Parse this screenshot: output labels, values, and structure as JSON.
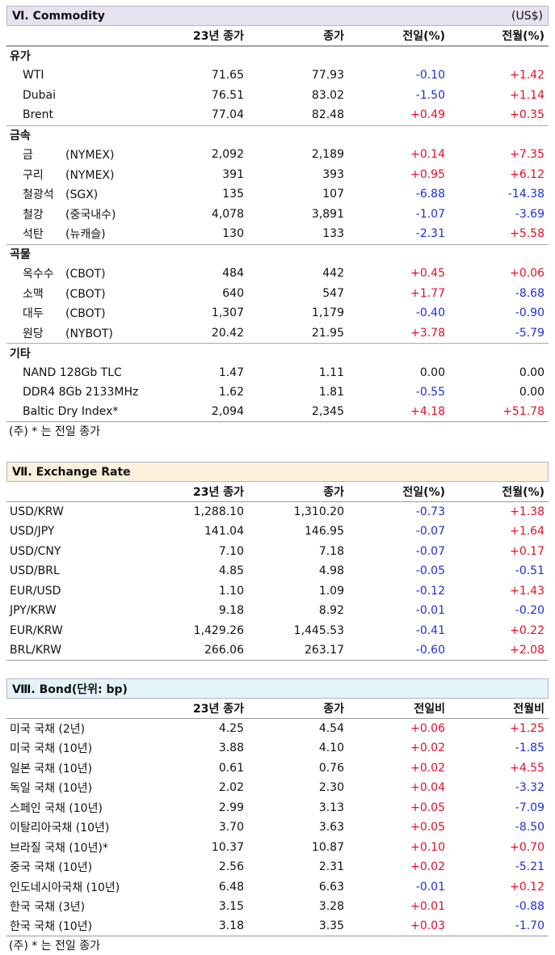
{
  "commodity": {
    "title": "Ⅵ. Commodity",
    "unit": "(US$)",
    "headers": [
      "",
      "23년 종가",
      "종가",
      "전일(%)",
      "전월(%)"
    ],
    "groups": [
      {
        "label": "유가",
        "rows": [
          {
            "name": "WTI",
            "sub": "",
            "y23": "71.65",
            "close": "77.93",
            "d": "-0.10",
            "m": "+1.42"
          },
          {
            "name": "Dubai",
            "sub": "",
            "y23": "76.51",
            "close": "83.02",
            "d": "-1.50",
            "m": "+1.14"
          },
          {
            "name": "Brent",
            "sub": "",
            "y23": "77.04",
            "close": "82.48",
            "d": "+0.49",
            "m": "+0.35"
          }
        ]
      },
      {
        "label": "금속",
        "rows": [
          {
            "name": "금",
            "sub": "(NYMEX)",
            "y23": "2,092",
            "close": "2,189",
            "d": "+0.14",
            "m": "+7.35"
          },
          {
            "name": "구리",
            "sub": "(NYMEX)",
            "y23": "391",
            "close": "393",
            "d": "+0.95",
            "m": "+6.12"
          },
          {
            "name": "철광석",
            "sub": "(SGX)",
            "y23": "135",
            "close": "107",
            "d": "-6.88",
            "m": "-14.38"
          },
          {
            "name": "철강",
            "sub": "(중국내수)",
            "y23": "4,078",
            "close": "3,891",
            "d": "-1.07",
            "m": "-3.69"
          },
          {
            "name": "석탄",
            "sub": "(뉴캐슬)",
            "y23": "130",
            "close": "133",
            "d": "-2.31",
            "m": "+5.58"
          }
        ]
      },
      {
        "label": "곡물",
        "rows": [
          {
            "name": "옥수수",
            "sub": "(CBOT)",
            "y23": "484",
            "close": "442",
            "d": "+0.45",
            "m": "+0.06"
          },
          {
            "name": "소맥",
            "sub": "(CBOT)",
            "y23": "640",
            "close": "547",
            "d": "+1.77",
            "m": "-8.68"
          },
          {
            "name": "대두",
            "sub": "(CBOT)",
            "y23": "1,307",
            "close": "1,179",
            "d": "-0.40",
            "m": "-0.90"
          },
          {
            "name": "원당",
            "sub": "(NYBOT)",
            "y23": "20.42",
            "close": "21.95",
            "d": "+3.78",
            "m": "-5.79"
          }
        ]
      },
      {
        "label": "기타",
        "rows": [
          {
            "name": "NAND 128Gb TLC",
            "sub": "",
            "y23": "1.47",
            "close": "1.11",
            "d": "0.00",
            "m": "0.00"
          },
          {
            "name": "DDR4 8Gb 2133MHz",
            "sub": "",
            "y23": "1.62",
            "close": "1.81",
            "d": "-0.55",
            "m": "0.00"
          },
          {
            "name": "Baltic Dry Index*",
            "sub": "",
            "y23": "2,094",
            "close": "2,345",
            "d": "+4.18",
            "m": "+51.78"
          }
        ]
      }
    ],
    "note": "(주) * 는 전일 종가"
  },
  "exchange": {
    "title": "Ⅶ. Exchange Rate",
    "headers": [
      "",
      "23년 종가",
      "종가",
      "전일(%)",
      "전월(%)"
    ],
    "rows": [
      {
        "name": "USD/KRW",
        "y23": "1,288.10",
        "close": "1,310.20",
        "d": "-0.73",
        "m": "+1.38"
      },
      {
        "name": "USD/JPY",
        "y23": "141.04",
        "close": "146.95",
        "d": "-0.07",
        "m": "+1.64"
      },
      {
        "name": "USD/CNY",
        "y23": "7.10",
        "close": "7.18",
        "d": "-0.07",
        "m": "+0.17"
      },
      {
        "name": "USD/BRL",
        "y23": "4.85",
        "close": "4.98",
        "d": "-0.05",
        "m": "-0.51"
      },
      {
        "name": "EUR/USD",
        "y23": "1.10",
        "close": "1.09",
        "d": "-0.12",
        "m": "+1.43"
      },
      {
        "name": "JPY/KRW",
        "y23": "9.18",
        "close": "8.92",
        "d": "-0.01",
        "m": "-0.20"
      },
      {
        "name": "EUR/KRW",
        "y23": "1,429.26",
        "close": "1,445.53",
        "d": "-0.41",
        "m": "+0.22"
      },
      {
        "name": "BRL/KRW",
        "y23": "266.06",
        "close": "263.17",
        "d": "-0.60",
        "m": "+2.08"
      }
    ]
  },
  "bond": {
    "title": "Ⅷ. Bond(단위: bp)",
    "headers": [
      "",
      "23년 종가",
      "종가",
      "전일비",
      "전월비"
    ],
    "rows": [
      {
        "name": "미국 국채 (2년)",
        "y23": "4.25",
        "close": "4.54",
        "d": "+0.06",
        "m": "+1.25"
      },
      {
        "name": "미국 국채 (10년)",
        "y23": "3.88",
        "close": "4.10",
        "d": "+0.02",
        "m": "-1.85"
      },
      {
        "name": "일본 국채 (10년)",
        "y23": "0.61",
        "close": "0.76",
        "d": "+0.02",
        "m": "+4.55"
      },
      {
        "name": "독일 국채 (10년)",
        "y23": "2.02",
        "close": "2.30",
        "d": "+0.04",
        "m": "-3.32"
      },
      {
        "name": "스페인 국채 (10년)",
        "y23": "2.99",
        "close": "3.13",
        "d": "+0.05",
        "m": "-7.09"
      },
      {
        "name": "이탈리아국채 (10년)",
        "y23": "3.70",
        "close": "3.63",
        "d": "+0.05",
        "m": "-8.50"
      },
      {
        "name": "브라질 국채 (10년)*",
        "y23": "10.37",
        "close": "10.87",
        "d": "+0.10",
        "m": "+0.70"
      },
      {
        "name": "중국 국채 (10년)",
        "y23": "2.56",
        "close": "2.31",
        "d": "+0.02",
        "m": "-5.21"
      },
      {
        "name": "인도네시아국채 (10년)",
        "y23": "6.48",
        "close": "6.63",
        "d": "-0.01",
        "m": "+0.12"
      },
      {
        "name": "한국 국채 (3년)",
        "y23": "3.15",
        "close": "3.28",
        "d": "+0.01",
        "m": "-0.88"
      },
      {
        "name": "한국 국채 (10년)",
        "y23": "3.18",
        "close": "3.35",
        "d": "+0.03",
        "m": "-1.70"
      }
    ],
    "note": "(주) * 는 전일 종가"
  },
  "colors": {
    "negative": "#1f2fd6",
    "positive": "#e0102a",
    "commodity_head_bg": "#e6e2ef",
    "exchange_head_bg": "#fbf1dc",
    "bond_head_bg": "#e2f4f8"
  }
}
